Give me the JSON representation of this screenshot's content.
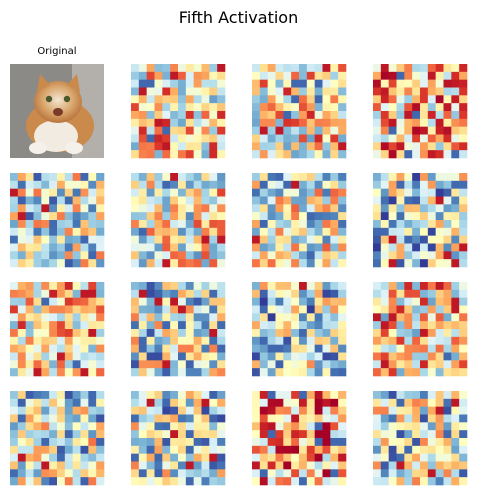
{
  "figure": {
    "title": "Fifth Activation",
    "original_label": "Original"
  },
  "chart_data": {
    "type": "heatmap",
    "title": "Fifth Activation",
    "colormap": "RdYlBu_r",
    "colormap_stops": [
      "#313695",
      "#4575b4",
      "#74add1",
      "#abd9e9",
      "#e0f3f8",
      "#ffffbf",
      "#fee090",
      "#fdae61",
      "#f46d43",
      "#d73027",
      "#a50026"
    ],
    "value_range": [
      0,
      1
    ],
    "grid": "4x4",
    "axes": "off",
    "panels": [
      {
        "name": "Original",
        "kind": "photo",
        "subject": "orange-and-white cat on gray floor"
      },
      {
        "name": "activation-1",
        "kind": "heatmap",
        "rows": 12,
        "cols": 12,
        "seed": 11,
        "bias": 0.55
      },
      {
        "name": "activation-2",
        "kind": "heatmap",
        "rows": 12,
        "cols": 12,
        "seed": 23,
        "bias": 0.55
      },
      {
        "name": "activation-3",
        "kind": "heatmap",
        "rows": 12,
        "cols": 12,
        "seed": 37,
        "bias": 0.62
      },
      {
        "name": "activation-4",
        "kind": "heatmap",
        "rows": 12,
        "cols": 12,
        "seed": 41,
        "bias": 0.42
      },
      {
        "name": "activation-5",
        "kind": "heatmap",
        "rows": 12,
        "cols": 12,
        "seed": 53,
        "bias": 0.5
      },
      {
        "name": "activation-6",
        "kind": "heatmap",
        "rows": 12,
        "cols": 12,
        "seed": 67,
        "bias": 0.45
      },
      {
        "name": "activation-7",
        "kind": "heatmap",
        "rows": 12,
        "cols": 12,
        "seed": 71,
        "bias": 0.38
      },
      {
        "name": "activation-8",
        "kind": "heatmap",
        "rows": 12,
        "cols": 12,
        "seed": 83,
        "bias": 0.58
      },
      {
        "name": "activation-9",
        "kind": "heatmap",
        "rows": 12,
        "cols": 12,
        "seed": 97,
        "bias": 0.4
      },
      {
        "name": "activation-10",
        "kind": "heatmap",
        "rows": 12,
        "cols": 12,
        "seed": 101,
        "bias": 0.38
      },
      {
        "name": "activation-11",
        "kind": "heatmap",
        "rows": 12,
        "cols": 12,
        "seed": 113,
        "bias": 0.55
      },
      {
        "name": "activation-12",
        "kind": "heatmap",
        "rows": 12,
        "cols": 12,
        "seed": 127,
        "bias": 0.42
      },
      {
        "name": "activation-13",
        "kind": "heatmap",
        "rows": 12,
        "cols": 12,
        "seed": 131,
        "bias": 0.4
      },
      {
        "name": "activation-14",
        "kind": "heatmap",
        "rows": 12,
        "cols": 12,
        "seed": 149,
        "bias": 0.68
      },
      {
        "name": "activation-15",
        "kind": "heatmap",
        "rows": 12,
        "cols": 12,
        "seed": 151,
        "bias": 0.4
      }
    ]
  }
}
